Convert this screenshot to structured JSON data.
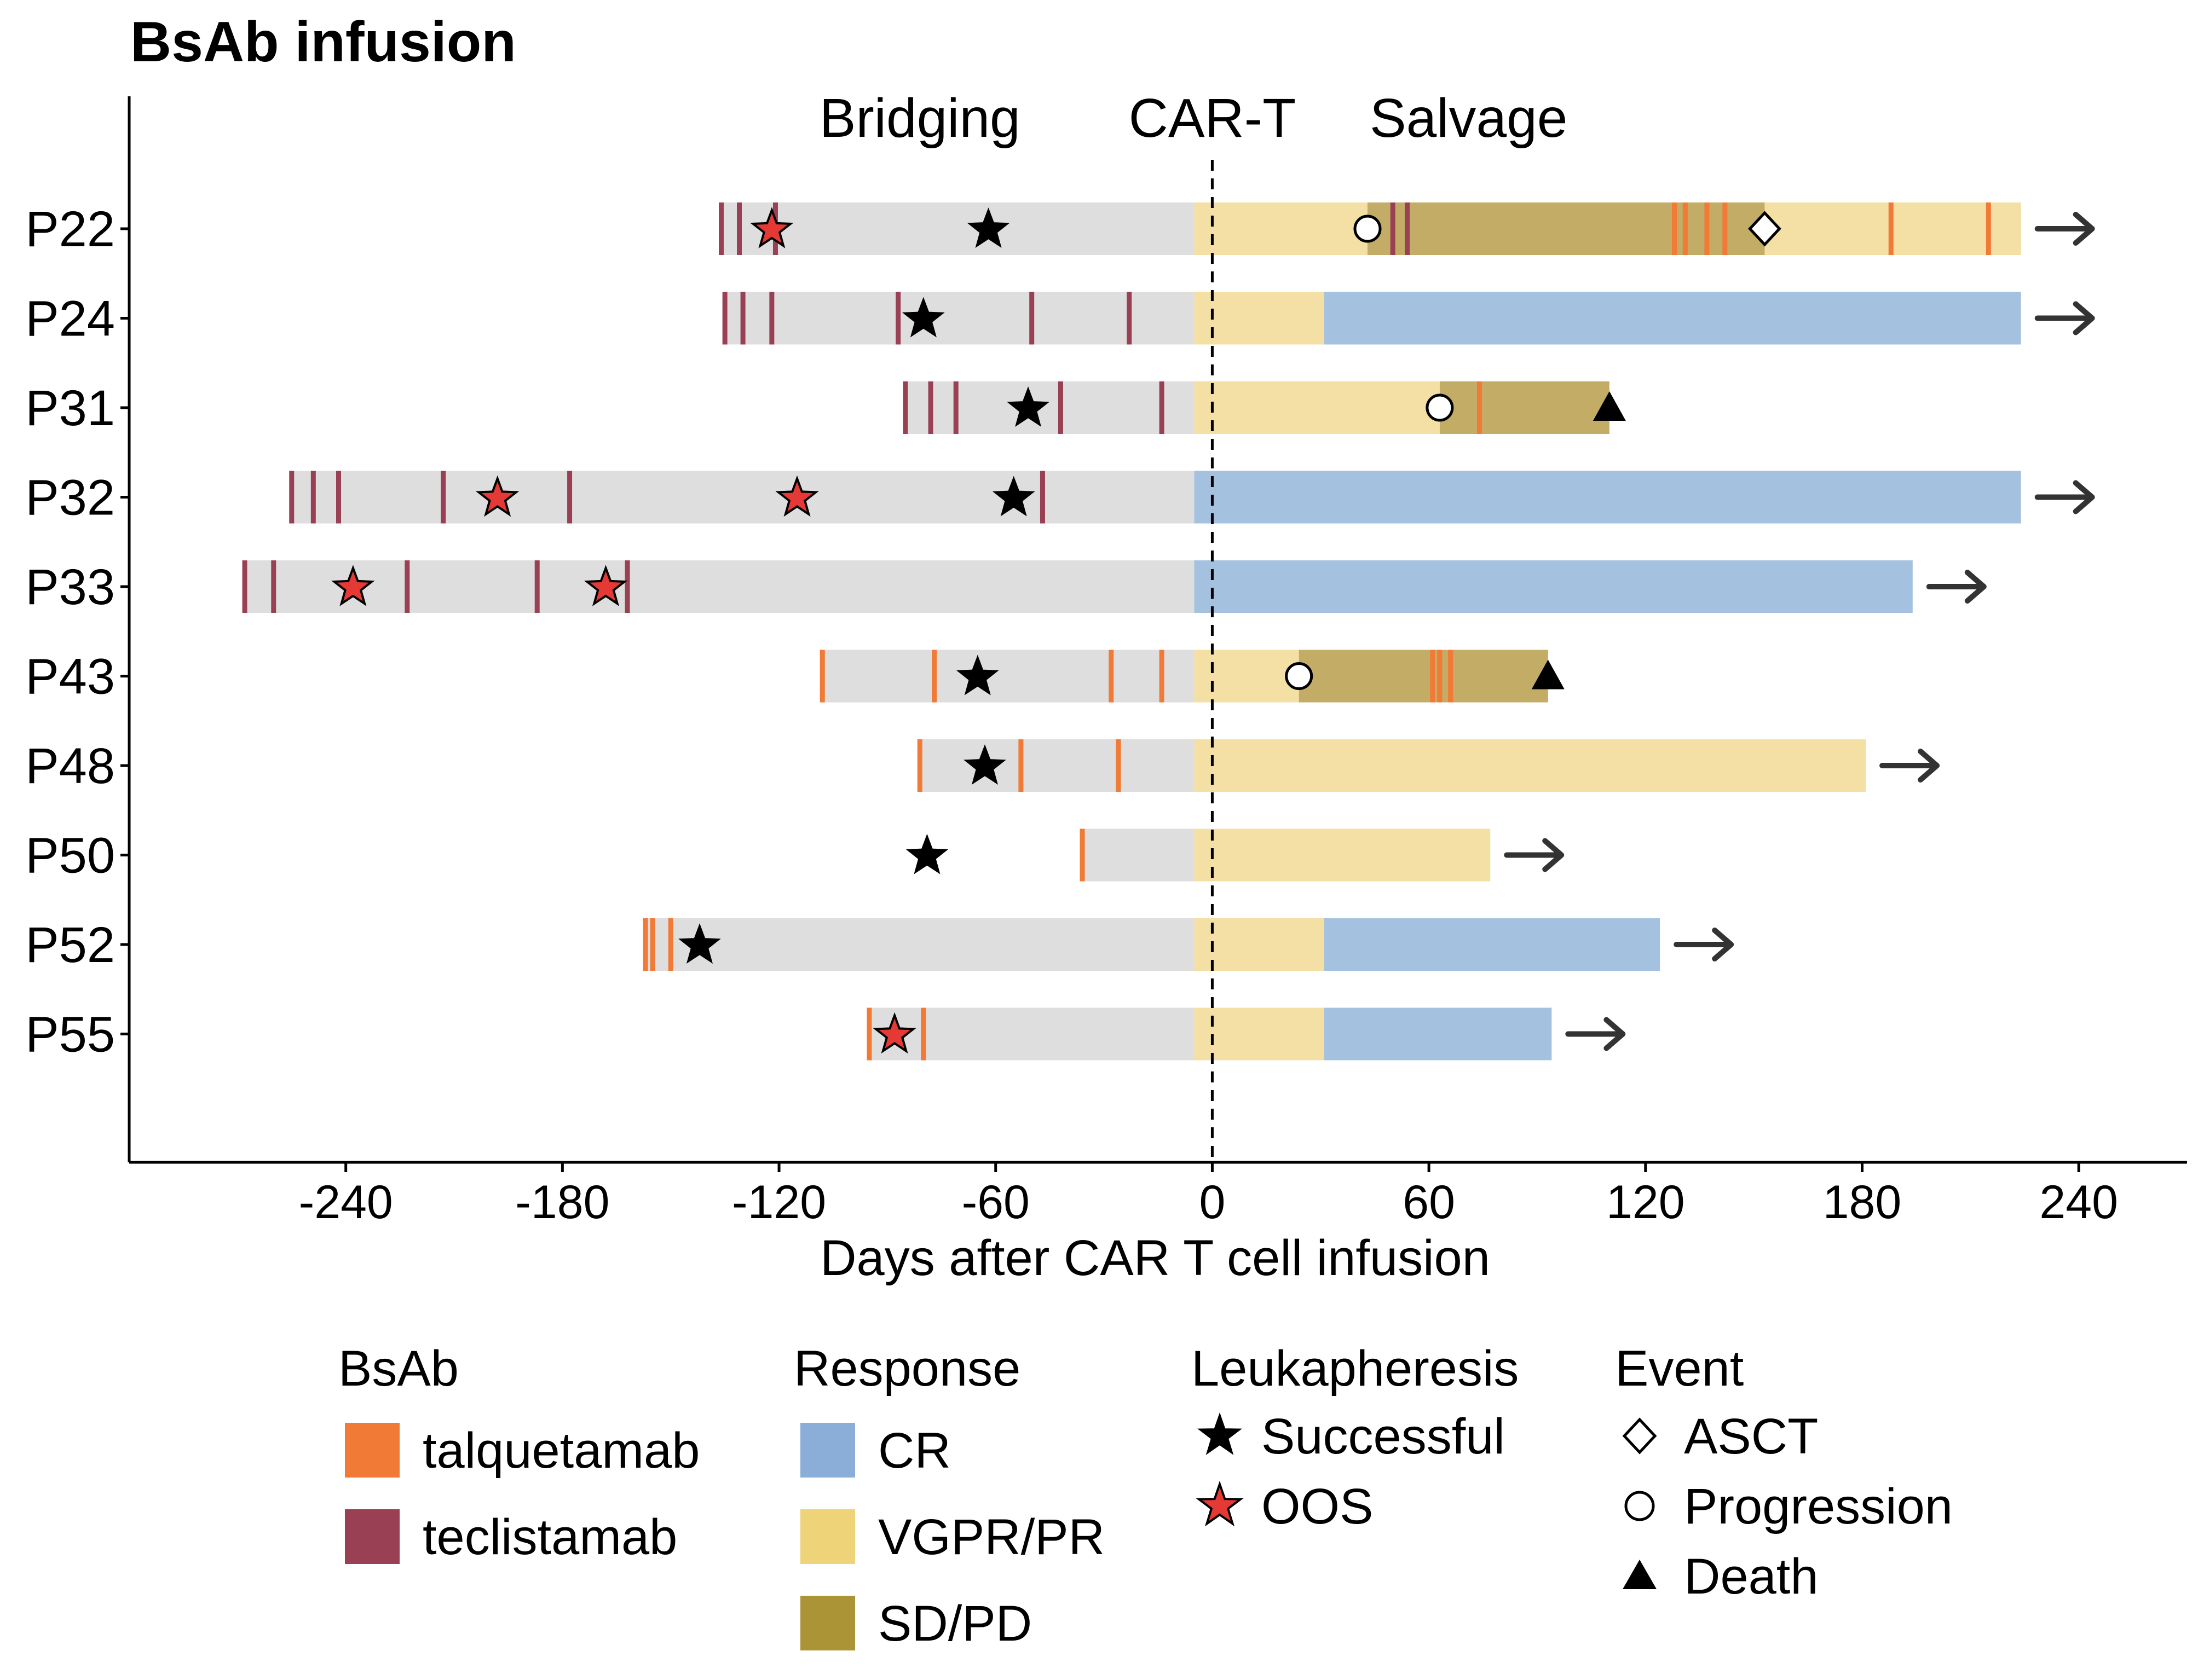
{
  "chart_data": {
    "type": "swimmer",
    "title": "BsAb infusion",
    "xlabel": "Days after CAR T cell infusion",
    "ylabel": "",
    "xlim": [
      -300,
      270
    ],
    "xticks": [
      -240,
      -180,
      -120,
      -60,
      0,
      60,
      120,
      180,
      240
    ],
    "xtick_labels": [
      "-240",
      "-180",
      "-120",
      "-60",
      "0",
      "60",
      "120",
      "180",
      "240"
    ],
    "phase_labels": [
      {
        "label": "Bridging",
        "x": -81
      },
      {
        "label": "CAR-T",
        "x": 0
      },
      {
        "label": "Salvage",
        "x": 71
      }
    ],
    "reference_line_x": 0,
    "colors": {
      "bridging_bar": "#DEDEDE",
      "talquetamab": "#F07A36",
      "teclistamab": "#9A4055",
      "CR": "#A4C2DF",
      "VGPR/PR": "#F4DFA5",
      "SD/PD": "#C2AC66",
      "legend_CR": "#8AAED8",
      "legend_VGPR/PR": "#EED378",
      "legend_SD/PD": "#AB9436",
      "oos_star": "#E53935",
      "successful_star": "#000000",
      "arrow": "#333333"
    },
    "patients": [
      {
        "id": "P22",
        "bridge_start": -136,
        "bridge_end": -5,
        "response": [
          {
            "start": -5,
            "end": 43,
            "status": "VGPR/PR"
          },
          {
            "start": 43,
            "end": 153,
            "status": "SD/PD"
          },
          {
            "start": 153,
            "end": 224,
            "status": "VGPR/PR"
          }
        ],
        "infusions": [
          {
            "day": -136,
            "drug": "teclistamab"
          },
          {
            "day": -131,
            "drug": "teclistamab"
          },
          {
            "day": -121,
            "drug": "teclistamab"
          },
          {
            "day": 50,
            "drug": "teclistamab"
          },
          {
            "day": 54,
            "drug": "teclistamab"
          },
          {
            "day": 128,
            "drug": "talquetamab"
          },
          {
            "day": 131,
            "drug": "talquetamab"
          },
          {
            "day": 137,
            "drug": "talquetamab"
          },
          {
            "day": 142,
            "drug": "talquetamab"
          },
          {
            "day": 188,
            "drug": "talquetamab"
          },
          {
            "day": 215,
            "drug": "talquetamab"
          }
        ],
        "leukapheresis": [
          {
            "day": -122,
            "type": "OOS"
          },
          {
            "day": -62,
            "type": "Successful"
          }
        ],
        "events": [
          {
            "day": 43,
            "type": "Progression"
          },
          {
            "day": 153,
            "type": "ASCT"
          }
        ],
        "ongoing": true
      },
      {
        "id": "P24",
        "bridge_start": -135,
        "bridge_end": -5,
        "response": [
          {
            "start": -5,
            "end": 31,
            "status": "VGPR/PR"
          },
          {
            "start": 31,
            "end": 224,
            "status": "CR"
          }
        ],
        "infusions": [
          {
            "day": -135,
            "drug": "teclistamab"
          },
          {
            "day": -130,
            "drug": "teclistamab"
          },
          {
            "day": -122,
            "drug": "teclistamab"
          },
          {
            "day": -87,
            "drug": "teclistamab"
          },
          {
            "day": -50,
            "drug": "teclistamab"
          },
          {
            "day": -23,
            "drug": "teclistamab"
          }
        ],
        "leukapheresis": [
          {
            "day": -80,
            "type": "Successful"
          }
        ],
        "events": [],
        "ongoing": true
      },
      {
        "id": "P31",
        "bridge_start": -85,
        "bridge_end": -5,
        "response": [
          {
            "start": -5,
            "end": 63,
            "status": "VGPR/PR"
          },
          {
            "start": 63,
            "end": 110,
            "status": "SD/PD"
          }
        ],
        "infusions": [
          {
            "day": -85,
            "drug": "teclistamab"
          },
          {
            "day": -78,
            "drug": "teclistamab"
          },
          {
            "day": -71,
            "drug": "teclistamab"
          },
          {
            "day": -42,
            "drug": "teclistamab"
          },
          {
            "day": -14,
            "drug": "teclistamab"
          },
          {
            "day": 74,
            "drug": "talquetamab"
          }
        ],
        "leukapheresis": [
          {
            "day": -51,
            "type": "Successful"
          }
        ],
        "events": [
          {
            "day": 63,
            "type": "Progression"
          },
          {
            "day": 110,
            "type": "Death"
          }
        ],
        "ongoing": false
      },
      {
        "id": "P32",
        "bridge_start": -255,
        "bridge_end": -5,
        "response": [
          {
            "start": -5,
            "end": 224,
            "status": "CR"
          }
        ],
        "infusions": [
          {
            "day": -255,
            "drug": "teclistamab"
          },
          {
            "day": -249,
            "drug": "teclistamab"
          },
          {
            "day": -242,
            "drug": "teclistamab"
          },
          {
            "day": -213,
            "drug": "teclistamab"
          },
          {
            "day": -178,
            "drug": "teclistamab"
          },
          {
            "day": -47,
            "drug": "teclistamab"
          }
        ],
        "leukapheresis": [
          {
            "day": -198,
            "type": "OOS"
          },
          {
            "day": -115,
            "type": "OOS"
          },
          {
            "day": -55,
            "type": "Successful"
          }
        ],
        "events": [],
        "ongoing": true
      },
      {
        "id": "P33",
        "bridge_start": -268,
        "bridge_end": -5,
        "response": [
          {
            "start": -5,
            "end": 194,
            "status": "CR"
          }
        ],
        "infusions": [
          {
            "day": -268,
            "drug": "teclistamab"
          },
          {
            "day": -260,
            "drug": "teclistamab"
          },
          {
            "day": -223,
            "drug": "teclistamab"
          },
          {
            "day": -187,
            "drug": "teclistamab"
          },
          {
            "day": -162,
            "drug": "teclistamab"
          }
        ],
        "leukapheresis": [
          {
            "day": -238,
            "type": "OOS"
          },
          {
            "day": -168,
            "type": "OOS"
          }
        ],
        "events": [],
        "ongoing": true
      },
      {
        "id": "P43",
        "bridge_start": -108,
        "bridge_end": -5,
        "response": [
          {
            "start": -5,
            "end": 24,
            "status": "VGPR/PR"
          },
          {
            "start": 24,
            "end": 93,
            "status": "SD/PD"
          }
        ],
        "infusions": [
          {
            "day": -108,
            "drug": "talquetamab"
          },
          {
            "day": -77,
            "drug": "talquetamab"
          },
          {
            "day": -28,
            "drug": "talquetamab"
          },
          {
            "day": -14,
            "drug": "talquetamab"
          },
          {
            "day": 61,
            "drug": "talquetamab"
          },
          {
            "day": 63,
            "drug": "talquetamab"
          },
          {
            "day": 66,
            "drug": "talquetamab"
          }
        ],
        "leukapheresis": [
          {
            "day": -65,
            "type": "Successful"
          }
        ],
        "events": [
          {
            "day": 24,
            "type": "Progression"
          },
          {
            "day": 93,
            "type": "Death"
          }
        ],
        "ongoing": false
      },
      {
        "id": "P48",
        "bridge_start": -81,
        "bridge_end": -5,
        "response": [
          {
            "start": -5,
            "end": 181,
            "status": "VGPR/PR"
          }
        ],
        "infusions": [
          {
            "day": -81,
            "drug": "talquetamab"
          },
          {
            "day": -53,
            "drug": "talquetamab"
          },
          {
            "day": -26,
            "drug": "talquetamab"
          }
        ],
        "leukapheresis": [
          {
            "day": -63,
            "type": "Successful"
          }
        ],
        "events": [],
        "ongoing": true
      },
      {
        "id": "P50",
        "bridge_start": -36,
        "bridge_end": -5,
        "response": [
          {
            "start": -5,
            "end": 77,
            "status": "VGPR/PR"
          }
        ],
        "infusions": [
          {
            "day": -36,
            "drug": "talquetamab"
          }
        ],
        "leukapheresis": [
          {
            "day": -79,
            "type": "Successful"
          }
        ],
        "events": [],
        "ongoing": true
      },
      {
        "id": "P52",
        "bridge_start": -157,
        "bridge_end": -5,
        "response": [
          {
            "start": -5,
            "end": 31,
            "status": "VGPR/PR"
          },
          {
            "start": 31,
            "end": 124,
            "status": "CR"
          }
        ],
        "infusions": [
          {
            "day": -157,
            "drug": "talquetamab"
          },
          {
            "day": -155,
            "drug": "talquetamab"
          },
          {
            "day": -150,
            "drug": "talquetamab"
          }
        ],
        "leukapheresis": [
          {
            "day": -142,
            "type": "Successful"
          }
        ],
        "events": [],
        "ongoing": true
      },
      {
        "id": "P55",
        "bridge_start": -95,
        "bridge_end": -5,
        "response": [
          {
            "start": -5,
            "end": 31,
            "status": "VGPR/PR"
          },
          {
            "start": 31,
            "end": 94,
            "status": "CR"
          }
        ],
        "infusions": [
          {
            "day": -95,
            "drug": "talquetamab"
          },
          {
            "day": -80,
            "drug": "talquetamab"
          }
        ],
        "leukapheresis": [
          {
            "day": -88,
            "type": "OOS"
          }
        ],
        "events": [],
        "ongoing": true
      }
    ],
    "legend": {
      "bsab": {
        "title": "BsAb",
        "items": [
          "talquetamab",
          "teclistamab"
        ]
      },
      "response": {
        "title": "Response",
        "items": [
          "CR",
          "VGPR/PR",
          "SD/PD"
        ]
      },
      "leukapheresis": {
        "title": "Leukapheresis",
        "items": [
          "Successful",
          "OOS"
        ]
      },
      "event": {
        "title": "Event",
        "items": [
          "ASCT",
          "Progression",
          "Death"
        ]
      }
    }
  }
}
